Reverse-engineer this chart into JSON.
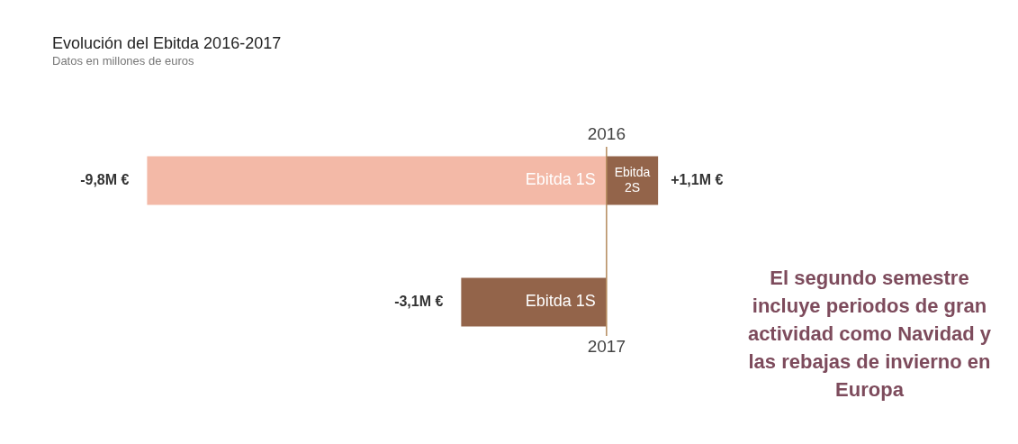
{
  "chart_data": {
    "type": "bar",
    "orientation": "horizontal",
    "stacked": true,
    "title": "Evolución del Ebitda 2016-2017",
    "subtitle": "Datos en millones de euros",
    "categories": [
      "2016",
      "2017"
    ],
    "series": [
      {
        "name": "Ebitda 1S",
        "colors": [
          "#f3b9a7",
          "#93644a"
        ],
        "values": [
          -9.8,
          -3.1
        ],
        "value_labels": [
          "-9,8M €",
          "-3,1M €"
        ]
      },
      {
        "name": "Ebitda 2S",
        "color": "#93644a",
        "values": [
          1.1,
          null
        ],
        "value_labels": [
          "+1,1M €",
          null
        ]
      }
    ],
    "ref_lines": [
      {
        "axis": "x",
        "value": 0,
        "color": "#b48a5c"
      }
    ],
    "annotations": [
      "El segundo semestre incluye periodos de gran actividad como Navidad y las rebajas de invierno en Europa"
    ]
  }
}
